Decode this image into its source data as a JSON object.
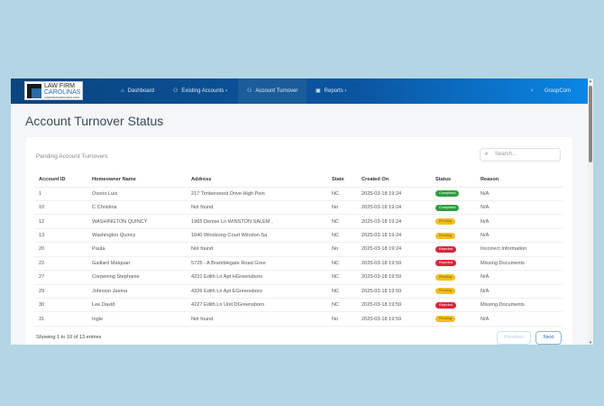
{
  "nav": {
    "logo": {
      "line1": "LAW FIRM",
      "line2": "CAROLINAS",
      "line3": "LAWFIRMCAROLINAS.COM"
    },
    "items": [
      {
        "label": "Dashboard",
        "icon": "house-icon"
      },
      {
        "label": "Existing Accounts ›",
        "icon": "user-icon"
      },
      {
        "label": "Account Turnover",
        "icon": "user-icon",
        "active": true
      },
      {
        "label": "Reports ›",
        "icon": "book-icon"
      }
    ],
    "user": "GraspCom",
    "bulb_icon": "lightbulb-icon"
  },
  "page": {
    "title": "Account Turnover Status"
  },
  "card": {
    "subtitle": "Pending Account Turnovers",
    "search_placeholder": "Search...",
    "columns": [
      "Account ID",
      "Homeowner Name",
      "Address",
      "State",
      "Created On",
      "Status",
      "Reason"
    ],
    "rows": [
      [
        "1",
        "Osorio Luis",
        "217 Timberwood Drive High Poin",
        "NC",
        "2025-03-18 19:24",
        "Completed",
        "N/A"
      ],
      [
        "10",
        "C Christina",
        "Not found",
        "No",
        "2025-03-18 19:24",
        "Completed",
        "N/A"
      ],
      [
        "12",
        "WASHINGTON QUINCY",
        "1965 Denise Ln WINSTON SALEM ,",
        "NC",
        "2025-03-18 19:24",
        "Pending",
        "N/A"
      ],
      [
        "13",
        "Washington Quincy",
        "1640 Windsong Court Winston Sa",
        "NC",
        "2025-03-18 19:24",
        "Pending",
        "N/A"
      ],
      [
        "20",
        "Paula",
        "Not found",
        "No",
        "2025-03-18 19:24",
        "Rejected",
        "Incorrect Information"
      ],
      [
        "22",
        "Gaillard Malquan",
        "5725 - A Bramblegate Road Gree",
        "NC",
        "2025-03-18 19:59",
        "Rejected",
        "Missing Documents"
      ],
      [
        "27",
        "Corpening Stephanie",
        "4231 Edith Ln Apt HGreensboro",
        "NC",
        "2025-03-18 19:59",
        "Pending",
        "N/A"
      ],
      [
        "29",
        "Johnson Jasma",
        "4326 Edith Ln Apt EGreensboro",
        "NC",
        "2025-03-18 19:59",
        "Pending",
        "N/A"
      ],
      [
        "30",
        "Lee David",
        "4227 Edith Ln Unit DGreensboro",
        "NC",
        "2025-03-18 19:59",
        "Rejected",
        "Missing Documents"
      ],
      [
        "31",
        "Ingle",
        "Not found",
        "No",
        "2025-03-18 19:59",
        "Pending",
        "N/A"
      ]
    ],
    "footer": "Showing 1 to 10 of 13 entries",
    "prev": "Previous",
    "next": "Next"
  },
  "status_colors": {
    "Completed": "#2e9e3e",
    "Pending": "#f0c020",
    "Rejected": "#d9263a"
  }
}
